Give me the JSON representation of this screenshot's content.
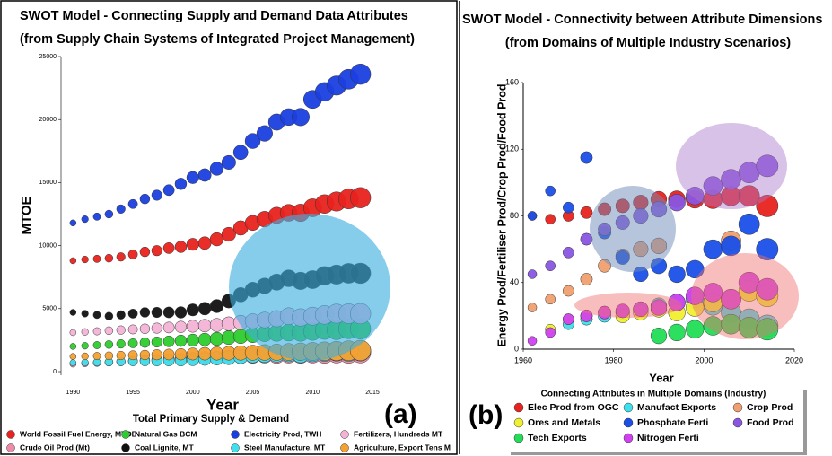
{
  "chart_data": [
    {
      "type": "bubble",
      "title": "SWOT Model - Connecting Supply and Demand Data Attributes",
      "subtitle": "(from Supply Chain Systems of Integrated Project Management)",
      "panel_label": "(a)",
      "x_label": "Year",
      "y_label": "MTOE",
      "legend_title": "Total Primary Supply & Demand",
      "xlim": [
        1989,
        2015
      ],
      "xticks": [
        1990,
        1995,
        2000,
        2005,
        2010,
        2015
      ],
      "ylim": [
        0,
        25000
      ],
      "yticks": [
        0,
        5000,
        10000,
        15000,
        20000,
        25000
      ],
      "x": [
        1990,
        1991,
        1992,
        1993,
        1994,
        1995,
        1996,
        1997,
        1998,
        1999,
        2000,
        2001,
        2002,
        2003,
        2004,
        2005,
        2006,
        2007,
        2008,
        2009,
        2010,
        2011,
        2012,
        2013,
        2014
      ],
      "series": [
        {
          "name": "World Fossil Fuel Energy, MTOE",
          "color": "#e8231f",
          "values": [
            8800,
            8900,
            8950,
            9000,
            9100,
            9300,
            9500,
            9600,
            9800,
            9900,
            10100,
            10200,
            10500,
            10900,
            11400,
            11800,
            12100,
            12400,
            12600,
            12600,
            13000,
            13300,
            13500,
            13700,
            13800
          ]
        },
        {
          "name": "Natural Gas BCM",
          "color": "#2ecc2e",
          "values": [
            2000,
            2050,
            2100,
            2150,
            2200,
            2250,
            2300,
            2350,
            2400,
            2450,
            2500,
            2550,
            2600,
            2700,
            2800,
            2900,
            3000,
            3050,
            3100,
            3100,
            3200,
            3300,
            3300,
            3400,
            3400
          ]
        },
        {
          "name": "Electricity Prod, TWH",
          "color": "#1a3fe0",
          "values": [
            11800,
            12100,
            12300,
            12500,
            12900,
            13300,
            13700,
            14000,
            14400,
            14900,
            15400,
            15600,
            16100,
            16600,
            17400,
            18300,
            18900,
            19800,
            20200,
            20200,
            21600,
            22200,
            22700,
            23200,
            23600
          ]
        },
        {
          "name": "Fertilizers, Hundreds MT",
          "color": "#f4b3d6",
          "values": [
            3100,
            3150,
            3200,
            3250,
            3300,
            3350,
            3400,
            3450,
            3500,
            3550,
            3600,
            3650,
            3700,
            3800,
            3900,
            4000,
            4100,
            4200,
            4400,
            4300,
            4400,
            4500,
            4600,
            4600,
            4600
          ]
        },
        {
          "name": "Crude Oil Prod (Mt)",
          "color": "#ef8aa8",
          "values": [
            600,
            650,
            700,
            750,
            800,
            850,
            900,
            950,
            1000,
            1000,
            1050,
            1100,
            1100,
            1150,
            1200,
            1250,
            1300,
            1300,
            1350,
            1350,
            1400,
            1400,
            1450,
            1450,
            1500
          ]
        },
        {
          "name": "Coal Lignite, MT",
          "color": "#111111",
          "values": [
            4700,
            4600,
            4500,
            4400,
            4500,
            4600,
            4700,
            4700,
            4700,
            4700,
            4900,
            5000,
            5200,
            5600,
            6100,
            6500,
            6800,
            7100,
            7400,
            7200,
            7300,
            7600,
            7700,
            7800,
            7800
          ]
        },
        {
          "name": "Steel Manufacture, MT",
          "color": "#3ee0ee",
          "values": [
            700,
            720,
            740,
            760,
            800,
            820,
            840,
            860,
            880,
            900,
            950,
            1000,
            1050,
            1100,
            1200,
            1300,
            1350,
            1400,
            1450,
            1400,
            1500,
            1550,
            1600,
            1600,
            1650
          ]
        },
        {
          "name": "Agriculture, Export Tens M",
          "color": "#f5a030",
          "values": [
            1200,
            1220,
            1240,
            1260,
            1280,
            1300,
            1320,
            1340,
            1360,
            1380,
            1400,
            1420,
            1440,
            1460,
            1480,
            1500,
            1520,
            1540,
            1560,
            1580,
            1600,
            1620,
            1640,
            1660,
            1680
          ]
        }
      ]
    },
    {
      "type": "bubble",
      "title": "SWOT Model  - Connectivity between Attribute Dimensions",
      "subtitle": "(from Domains of Multiple Industry Scenarios)",
      "panel_label": "(b)",
      "x_label": "Year",
      "y_label": "Energy Prod/Fertiliser Prod/Crop Prod/Food Prod",
      "legend_title": "Connecting Attributes in Multiple Domains (Industry)",
      "xlim": [
        1960,
        2020
      ],
      "xticks": [
        1960,
        1980,
        2000,
        2020
      ],
      "ylim": [
        0,
        160
      ],
      "yticks": [
        0,
        40,
        80,
        120,
        160
      ],
      "x": [
        1962,
        1966,
        1970,
        1974,
        1978,
        1982,
        1986,
        1990,
        1994,
        1998,
        2002,
        2006,
        2010,
        2014
      ],
      "series": [
        {
          "name": "Elec Prod from OGC",
          "color": "#e8231f",
          "values": [
            80,
            78,
            80,
            82,
            84,
            86,
            88,
            90,
            90,
            90,
            90,
            92,
            92,
            86
          ]
        },
        {
          "name": "Manufact Exports",
          "color": "#3ee0ee",
          "values": [
            null,
            null,
            15,
            18,
            20,
            22,
            24,
            26,
            28,
            30,
            26,
            22,
            18,
            14
          ]
        },
        {
          "name": "Crop Prod",
          "color": "#f0a070",
          "values": [
            25,
            30,
            35,
            42,
            50,
            56,
            60,
            62,
            null,
            null,
            null,
            65,
            null,
            null
          ]
        },
        {
          "name": "Ores and Metals",
          "color": "#f0f030",
          "values": [
            null,
            12,
            18,
            20,
            22,
            20,
            22,
            24,
            22,
            25,
            28,
            30,
            35,
            32
          ]
        },
        {
          "name": "Phosphate Ferti",
          "color": "#1a4fe8",
          "values": [
            80,
            95,
            85,
            115,
            70,
            55,
            45,
            50,
            45,
            48,
            60,
            62,
            75,
            60
          ]
        },
        {
          "name": "Food Prod",
          "color": "#8a55e0",
          "values": [
            45,
            50,
            58,
            66,
            72,
            76,
            80,
            84,
            88,
            92,
            98,
            102,
            106,
            110
          ]
        },
        {
          "name": "Tech Exports",
          "color": "#22dd55",
          "values": [
            null,
            null,
            null,
            null,
            null,
            null,
            null,
            8,
            10,
            12,
            14,
            15,
            13,
            12
          ]
        },
        {
          "name": "Nitrogen Ferti",
          "color": "#d040f0",
          "values": [
            5,
            10,
            18,
            20,
            22,
            23,
            24,
            25,
            28,
            32,
            34,
            30,
            40,
            36
          ]
        }
      ]
    }
  ]
}
